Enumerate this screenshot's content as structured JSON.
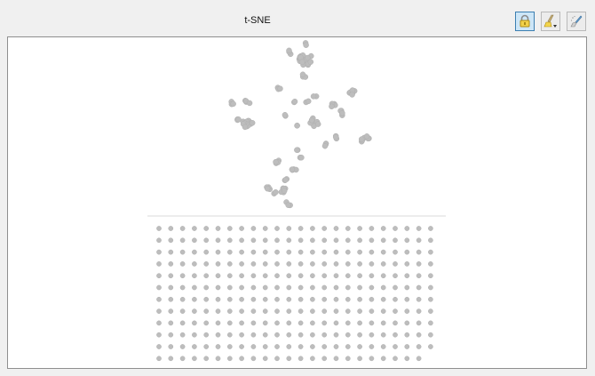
{
  "window": {
    "title": "t-SNE"
  },
  "toolbar": {
    "buttons": [
      {
        "name": "lock",
        "icon": "lock-icon",
        "active": true
      },
      {
        "name": "brush",
        "icon": "brush-icon",
        "active": false
      },
      {
        "name": "erase",
        "icon": "eraser-icon",
        "active": false
      }
    ]
  },
  "colors": {
    "point": "#bdbdbd",
    "point_edge": "#b0b0b0",
    "divider": "#d8d8d8",
    "frame": "#8f8f8f"
  }
}
